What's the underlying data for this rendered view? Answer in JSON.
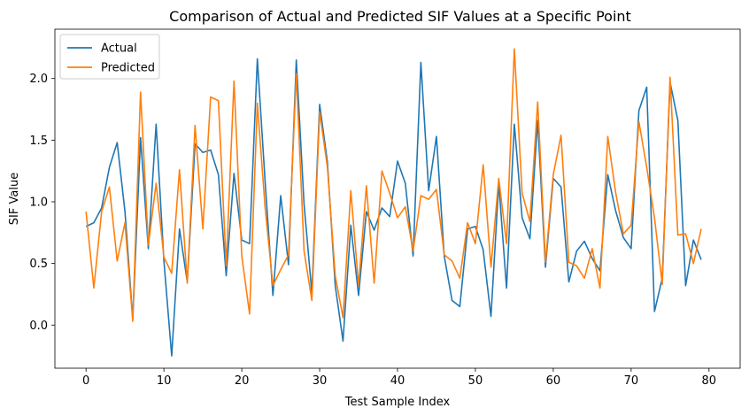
{
  "chart_data": {
    "type": "line",
    "title": "Comparison of Actual and Predicted SIF Values at a Specific Point",
    "xlabel": "Test Sample Index",
    "ylabel": "SIF Value",
    "xlim": [
      -4,
      84
    ],
    "ylim": [
      -0.35,
      2.4
    ],
    "xticks": [
      0,
      10,
      20,
      30,
      40,
      50,
      60,
      70,
      80
    ],
    "yticks": [
      0.0,
      0.5,
      1.0,
      1.5,
      2.0
    ],
    "xtick_labels": [
      "0",
      "10",
      "20",
      "30",
      "40",
      "50",
      "60",
      "70",
      "80"
    ],
    "ytick_labels": [
      "0.0",
      "0.5",
      "1.0",
      "1.5",
      "2.0"
    ],
    "grid": false,
    "legend_position": "top-left",
    "series": [
      {
        "name": "Actual",
        "color": "#1f77b4",
        "values": [
          0.8,
          0.83,
          0.95,
          1.28,
          1.48,
          0.92,
          0.05,
          1.52,
          0.62,
          1.63,
          0.52,
          -0.25,
          0.78,
          0.35,
          1.47,
          1.4,
          1.42,
          1.22,
          0.4,
          1.23,
          0.69,
          0.66,
          2.16,
          1.16,
          0.24,
          1.05,
          0.49,
          2.15,
          0.98,
          0.26,
          1.79,
          1.32,
          0.32,
          -0.13,
          0.81,
          0.24,
          0.92,
          0.77,
          0.95,
          0.88,
          1.33,
          1.15,
          0.56,
          2.13,
          1.09,
          1.53,
          0.56,
          0.2,
          0.15,
          0.78,
          0.8,
          0.61,
          0.07,
          1.15,
          0.3,
          1.63,
          0.87,
          0.7,
          1.66,
          0.47,
          1.19,
          1.12,
          0.35,
          0.6,
          0.68,
          0.54,
          0.44,
          1.22,
          0.93,
          0.71,
          0.62,
          1.74,
          1.93,
          0.11,
          0.38,
          1.97,
          1.66,
          0.32,
          0.69,
          0.53
        ]
      },
      {
        "name": "Predicted",
        "color": "#ff7f0e",
        "values": [
          0.92,
          0.3,
          0.92,
          1.12,
          0.52,
          0.83,
          0.03,
          1.89,
          0.65,
          1.15,
          0.55,
          0.42,
          1.26,
          0.34,
          1.62,
          0.78,
          1.85,
          1.82,
          0.48,
          1.98,
          0.56,
          0.09,
          1.8,
          0.95,
          0.32,
          0.45,
          0.57,
          2.04,
          0.6,
          0.2,
          1.73,
          1.28,
          0.4,
          0.06,
          1.09,
          0.32,
          1.13,
          0.34,
          1.25,
          1.07,
          0.87,
          0.96,
          0.6,
          1.05,
          1.02,
          1.1,
          0.57,
          0.52,
          0.38,
          0.83,
          0.66,
          1.3,
          0.47,
          1.19,
          0.66,
          2.24,
          1.07,
          0.84,
          1.81,
          0.51,
          1.22,
          1.54,
          0.51,
          0.48,
          0.38,
          0.62,
          0.3,
          1.53,
          1.08,
          0.74,
          0.81,
          1.65,
          1.28,
          0.87,
          0.33,
          2.01,
          0.73,
          0.74,
          0.5,
          0.78
        ]
      }
    ]
  }
}
